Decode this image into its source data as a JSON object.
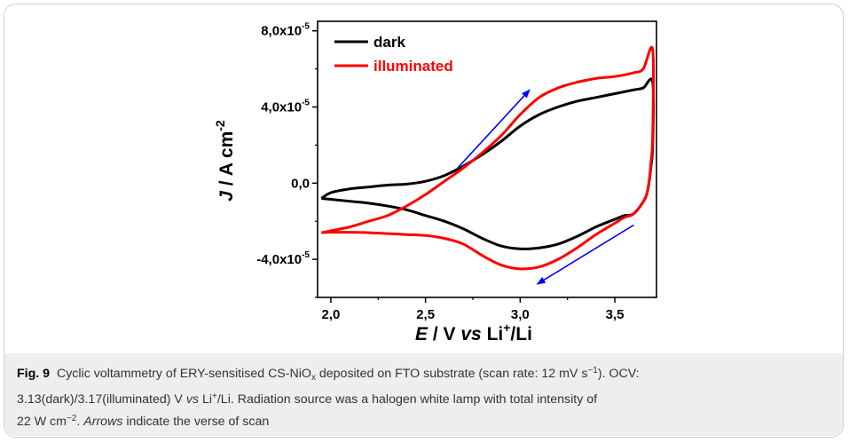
{
  "chart_data": {
    "type": "line",
    "xlabel": "E / V vs Li+/Li",
    "ylabel": "J / A cm-2",
    "xlim": [
      1.93,
      3.72
    ],
    "ylim": [
      -6e-05,
      8.5e-05
    ],
    "x_ticks": [
      2.0,
      2.5,
      3.0,
      3.5
    ],
    "x_tick_labels": [
      "2,0",
      "2,5",
      "3,0",
      "3,5"
    ],
    "y_ticks": [
      -4e-05,
      0.0,
      4e-05,
      8e-05
    ],
    "y_tick_labels": [
      "-4,0x10-5",
      "0,0",
      "4,0x10-5",
      "8,0x10-5"
    ],
    "legend": {
      "position": "top-left"
    },
    "series": [
      {
        "name": "dark",
        "color": "#000000",
        "x": [
          1.95,
          2.0,
          2.1,
          2.2,
          2.3,
          2.4,
          2.5,
          2.6,
          2.7,
          2.8,
          2.9,
          3.0,
          3.1,
          3.2,
          3.3,
          3.4,
          3.5,
          3.6,
          3.65,
          3.7,
          3.7,
          3.69,
          3.68,
          3.66,
          3.6,
          3.55,
          3.5,
          3.4,
          3.3,
          3.2,
          3.1,
          3.0,
          2.9,
          2.8,
          2.7,
          2.6,
          2.5,
          2.4,
          2.3,
          2.2,
          2.1,
          2.0,
          1.95
        ],
        "y": [
          -8e-06,
          -5e-06,
          -3e-06,
          -2e-06,
          -1e-06,
          -5e-07,
          1e-06,
          4e-06,
          9e-06,
          1.5e-05,
          2.2e-05,
          3e-05,
          3.6e-05,
          4e-05,
          4.3e-05,
          4.5e-05,
          4.7e-05,
          4.9e-05,
          5e-05,
          5.3e-05,
          2e-05,
          8e-06,
          0.0,
          -8e-06,
          -1.6e-05,
          -1.7e-05,
          -1.9e-05,
          -2.3e-05,
          -2.8e-05,
          -3.2e-05,
          -3.4e-05,
          -3.45e-05,
          -3.3e-05,
          -2.9e-05,
          -2.4e-05,
          -2e-05,
          -1.7e-05,
          -1.4e-05,
          -1.2e-05,
          -1.05e-05,
          -9.5e-06,
          -8.5e-06,
          -8e-06
        ]
      },
      {
        "name": "illuminated",
        "color": "#ff0000",
        "x": [
          1.95,
          2.0,
          2.1,
          2.2,
          2.3,
          2.4,
          2.5,
          2.6,
          2.7,
          2.8,
          2.9,
          3.0,
          3.1,
          3.2,
          3.3,
          3.4,
          3.5,
          3.6,
          3.65,
          3.7,
          3.7,
          3.69,
          3.68,
          3.66,
          3.6,
          3.55,
          3.5,
          3.4,
          3.3,
          3.2,
          3.1,
          3.0,
          2.9,
          2.8,
          2.7,
          2.6,
          2.5,
          2.4,
          2.3,
          2.2,
          2.1,
          2.0,
          1.95
        ],
        "y": [
          -2.6e-05,
          -2.5e-05,
          -2.3e-05,
          -2e-05,
          -1.7e-05,
          -1.2e-05,
          -6e-06,
          1e-06,
          8e-06,
          1.6e-05,
          2.5e-05,
          3.6e-05,
          4.5e-05,
          5e-05,
          5.3e-05,
          5.5e-05,
          5.6e-05,
          5.8e-05,
          6e-05,
          7e-05,
          2.5e-05,
          1e-05,
          0.0,
          -8e-06,
          -1.6e-05,
          -1.8e-05,
          -2.1e-05,
          -2.7e-05,
          -3.4e-05,
          -4e-05,
          -4.4e-05,
          -4.5e-05,
          -4.3e-05,
          -3.8e-05,
          -3.2e-05,
          -2.9e-05,
          -2.75e-05,
          -2.7e-05,
          -2.65e-05,
          -2.6e-05,
          -2.58e-05,
          -2.58e-05,
          -2.6e-05
        ]
      }
    ],
    "annotations": [
      {
        "name": "forward-scan-arrow",
        "color": "#0000ff",
        "x1": 2.67,
        "y1": 8e-06,
        "x2": 3.05,
        "y2": 4.9e-05
      },
      {
        "name": "reverse-scan-arrow",
        "color": "#0000ff",
        "x1": 3.6,
        "y1": -2.2e-05,
        "x2": 3.09,
        "y2": -5.3e-05
      }
    ]
  },
  "caption": {
    "label": "Fig. 9",
    "line1_a": "Cyclic voltammetry of ERY-sensitised CS-NiO",
    "line1_sub": "x",
    "line1_b": " deposited on FTO substrate (scan rate: 12 mV s",
    "line1_sup": "−1",
    "line1_c": "). OCV:",
    "line2_a": "3.13(dark)/3.17(illuminated) V ",
    "line2_vs": "vs",
    "line2_b": " Li",
    "line2_sup": "+",
    "line2_c": "/Li. Radiation source was a halogen white lamp with total intensity of",
    "line3_a": "22 W cm",
    "line3_sup": "−2",
    "line3_b": ". ",
    "line3_arrows": "Arrows",
    "line3_c": " indicate the verse of scan"
  }
}
